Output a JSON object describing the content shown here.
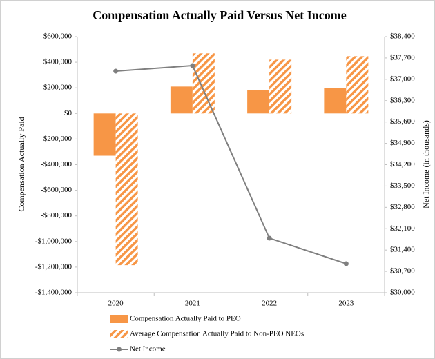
{
  "chart_data": {
    "type": "bar",
    "title": "Compensation Actually Paid Versus Net Income",
    "ylabel": "Compensation Actually Paid",
    "y2label": "Net Income (in thousands)",
    "categories": [
      "2020",
      "2021",
      "2022",
      "2023"
    ],
    "series": [
      {
        "name": "Compensation Actually Paid to PEO",
        "type": "bar",
        "color": "#f79646",
        "pattern": "solid",
        "values": [
          -330000,
          210000,
          180000,
          200000
        ]
      },
      {
        "name": "Average Compensation Actually Paid to Non-PEO NEOs",
        "type": "bar",
        "color": "#f79646",
        "pattern": "hatch",
        "values": [
          -1185000,
          469000,
          420000,
          447000
        ]
      },
      {
        "name": "Net Income",
        "type": "line",
        "axis": "y2",
        "color": "#7f7f7f",
        "values": [
          37268,
          37449,
          31789,
          30951
        ]
      }
    ],
    "ylim": [
      -1400000,
      600000
    ],
    "yticks": [
      {
        "value": -1400000,
        "label": "-$1,400,000"
      },
      {
        "value": -1200000,
        "label": "-$1,200,000"
      },
      {
        "value": -1000000,
        "label": "-$1,000,000"
      },
      {
        "value": -800000,
        "label": "-$800,000"
      },
      {
        "value": -600000,
        "label": "-$600,000"
      },
      {
        "value": -400000,
        "label": "-$400,000"
      },
      {
        "value": -200000,
        "label": "-$200,000"
      },
      {
        "value": 0,
        "label": "$0"
      },
      {
        "value": 200000,
        "label": "$200,000"
      },
      {
        "value": 400000,
        "label": "$400,000"
      },
      {
        "value": 600000,
        "label": "$600,000"
      }
    ],
    "y2lim": [
      30000,
      38400
    ],
    "y2ticks": [
      {
        "value": 30000,
        "label": "$30,000"
      },
      {
        "value": 30700,
        "label": "$30,700"
      },
      {
        "value": 31400,
        "label": "$31,400"
      },
      {
        "value": 32100,
        "label": "$32,100"
      },
      {
        "value": 32800,
        "label": "$32,800"
      },
      {
        "value": 33500,
        "label": "$33,500"
      },
      {
        "value": 34200,
        "label": "$34,200"
      },
      {
        "value": 34900,
        "label": "$34,900"
      },
      {
        "value": 35600,
        "label": "$35,600"
      },
      {
        "value": 36300,
        "label": "$36,300"
      },
      {
        "value": 37000,
        "label": "$37,000"
      },
      {
        "value": 37700,
        "label": "$37,700"
      },
      {
        "value": 38400,
        "label": "$38,400"
      }
    ],
    "legend": "bottom"
  }
}
